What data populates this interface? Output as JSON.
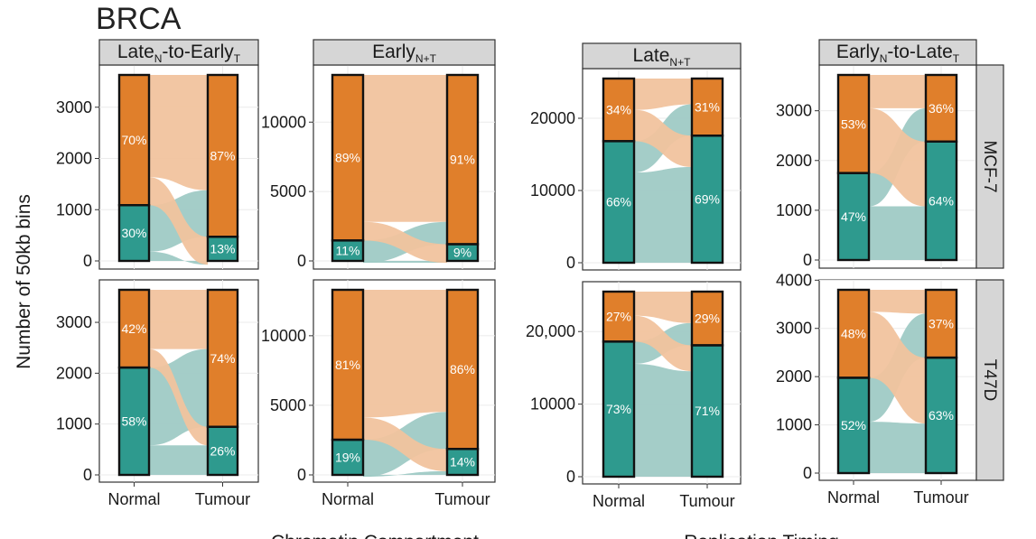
{
  "figure_title": "BRCA",
  "y_axis_label": "Number of 50kb bins",
  "x_axis_labels": [
    "Chromatin Compartment",
    "Replication Timing"
  ],
  "row_labels": [
    "MCF-7",
    "T47D"
  ],
  "colors": {
    "early": "#E07F2B",
    "late": "#2E9A8E",
    "early_flow": "#F1C39E",
    "late_flow": "#9FCAC5"
  },
  "chart_data": [
    {
      "type": "bar",
      "column": "Late-to-Early",
      "strip": {
        "main": "Late",
        "sub1": "N",
        "mid": "-to-Early",
        "sub2": "T"
      },
      "row": "MCF-7",
      "categories": [
        "Normal",
        "Tumour"
      ],
      "total": 3630,
      "ylim": [
        0,
        3800
      ],
      "yticks": [
        0,
        1000,
        2000,
        3000
      ],
      "ytick_labels": [
        "0",
        "1000",
        "2000",
        "3000"
      ],
      "bottom_pct": [
        30,
        13
      ],
      "top_pct": [
        70,
        87
      ],
      "bottom_labels": [
        "30%",
        "13%"
      ],
      "top_labels": [
        "70%",
        "87%"
      ],
      "flows": [
        [
          1,
          0,
          0.25
        ],
        [
          0,
          1,
          0.15
        ]
      ]
    },
    {
      "type": "bar",
      "column": "Early N+T",
      "strip": {
        "main": "Early",
        "sub1": "N+T",
        "mid": "",
        "sub2": ""
      },
      "row": "MCF-7",
      "categories": [
        "Normal",
        "Tumour"
      ],
      "total": 13400,
      "ylim": [
        0,
        14000
      ],
      "yticks": [
        0,
        5000,
        10000
      ],
      "ytick_labels": [
        "0",
        "5000",
        "10000"
      ],
      "bottom_pct": [
        11,
        9
      ],
      "top_pct": [
        89,
        91
      ],
      "bottom_labels": [
        "11%",
        "9%"
      ],
      "top_labels": [
        "89%",
        "91%"
      ],
      "flows": [
        [
          1,
          0,
          0.12
        ],
        [
          0,
          1,
          0.1
        ]
      ]
    },
    {
      "type": "bar",
      "column": "Late N+T",
      "strip": {
        "main": "Late",
        "sub1": "N+T",
        "mid": "",
        "sub2": ""
      },
      "row": "MCF-7",
      "categories": [
        "Normal",
        "Tumour"
      ],
      "total": 25500,
      "ylim": [
        0,
        26500
      ],
      "yticks": [
        0,
        10000,
        20000
      ],
      "ytick_labels": [
        "0",
        "10000",
        "20000"
      ],
      "bottom_pct": [
        66,
        69
      ],
      "top_pct": [
        34,
        31
      ],
      "bottom_labels": [
        "66%",
        "69%"
      ],
      "top_labels": [
        "34%",
        "31%"
      ],
      "flows": [
        [
          1,
          0,
          0.17
        ],
        [
          0,
          1,
          0.17
        ]
      ]
    },
    {
      "type": "bar",
      "column": "Early-to-Late",
      "strip": {
        "main": "Early",
        "sub1": "N",
        "mid": "-to-Late",
        "sub2": "T"
      },
      "row": "MCF-7",
      "categories": [
        "Normal",
        "Tumour"
      ],
      "total": 3720,
      "ylim": [
        0,
        3800
      ],
      "yticks": [
        0,
        1000,
        2000,
        3000
      ],
      "ytick_labels": [
        "0",
        "1000",
        "2000",
        "3000"
      ],
      "bottom_pct": [
        47,
        64
      ],
      "top_pct": [
        53,
        36
      ],
      "bottom_labels": [
        "47%",
        "64%"
      ],
      "top_labels": [
        "53%",
        "36%"
      ],
      "flows": [
        [
          1,
          0,
          0.18
        ],
        [
          0,
          1,
          0.35
        ]
      ]
    },
    {
      "type": "bar",
      "column": "Late-to-Early",
      "strip": null,
      "row": "T47D",
      "categories": [
        "Normal",
        "Tumour"
      ],
      "total": 3640,
      "ylim": [
        0,
        3800
      ],
      "yticks": [
        0,
        1000,
        2000,
        3000
      ],
      "ytick_labels": [
        "0",
        "1000",
        "2000",
        "3000"
      ],
      "bottom_pct": [
        58,
        26
      ],
      "top_pct": [
        42,
        74
      ],
      "bottom_labels": [
        "58%",
        "26%"
      ],
      "top_labels": [
        "42%",
        "74%"
      ],
      "flows": [
        [
          1,
          0,
          0.42
        ],
        [
          0,
          1,
          0.1
        ]
      ]
    },
    {
      "type": "bar",
      "column": "Early N+T",
      "strip": null,
      "row": "T47D",
      "categories": [
        "Normal",
        "Tumour"
      ],
      "total": 13300,
      "ylim": [
        0,
        14000
      ],
      "yticks": [
        0,
        5000,
        10000
      ],
      "ytick_labels": [
        "0",
        "5000",
        "10000"
      ],
      "bottom_pct": [
        19,
        14
      ],
      "top_pct": [
        81,
        86
      ],
      "bottom_labels": [
        "19%",
        "14%"
      ],
      "top_labels": [
        "81%",
        "86%"
      ],
      "flows": [
        [
          1,
          0,
          0.2
        ],
        [
          0,
          1,
          0.12
        ]
      ]
    },
    {
      "type": "bar",
      "column": "Late N+T",
      "strip": null,
      "row": "T47D",
      "categories": [
        "Normal",
        "Tumour"
      ],
      "total": 25500,
      "ylim": [
        0,
        26500
      ],
      "yticks": [
        0,
        10000,
        20000
      ],
      "ytick_labels": [
        "0",
        "10000",
        "20,000"
      ],
      "bottom_pct": [
        73,
        71
      ],
      "top_pct": [
        27,
        29
      ],
      "bottom_labels": [
        "73%",
        "71%"
      ],
      "top_labels": [
        "27%",
        "29%"
      ],
      "flows": [
        [
          1,
          0,
          0.12
        ],
        [
          0,
          1,
          0.14
        ]
      ]
    },
    {
      "type": "bar",
      "column": "Early-to-Late",
      "strip": null,
      "row": "T47D",
      "categories": [
        "Normal",
        "Tumour"
      ],
      "total": 3800,
      "ylim": [
        0,
        4000
      ],
      "yticks": [
        0,
        1000,
        2000,
        3000,
        4000
      ],
      "ytick_labels": [
        "0",
        "1000",
        "2000",
        "3000",
        "4000"
      ],
      "bottom_pct": [
        52,
        63
      ],
      "top_pct": [
        48,
        37
      ],
      "bottom_labels": [
        "52%",
        "63%"
      ],
      "top_labels": [
        "48%",
        "37%"
      ],
      "flows": [
        [
          1,
          0,
          0.24
        ],
        [
          0,
          1,
          0.36
        ]
      ]
    }
  ]
}
